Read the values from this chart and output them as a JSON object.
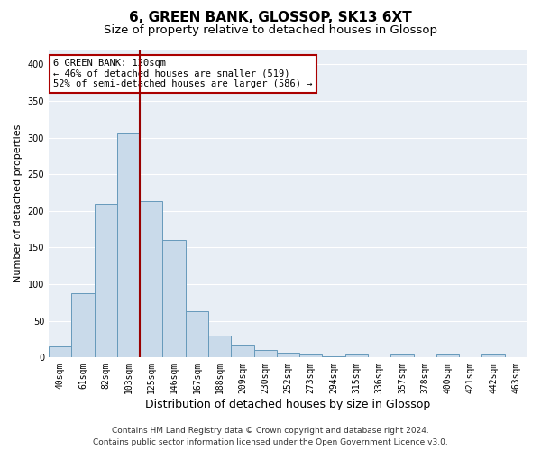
{
  "title": "6, GREEN BANK, GLOSSOP, SK13 6XT",
  "subtitle": "Size of property relative to detached houses in Glossop",
  "xlabel": "Distribution of detached houses by size in Glossop",
  "ylabel": "Number of detached properties",
  "categories": [
    "40sqm",
    "61sqm",
    "82sqm",
    "103sqm",
    "125sqm",
    "146sqm",
    "167sqm",
    "188sqm",
    "209sqm",
    "230sqm",
    "252sqm",
    "273sqm",
    "294sqm",
    "315sqm",
    "336sqm",
    "357sqm",
    "378sqm",
    "400sqm",
    "421sqm",
    "442sqm",
    "463sqm"
  ],
  "values": [
    15,
    88,
    210,
    305,
    213,
    160,
    63,
    30,
    16,
    10,
    7,
    4,
    2,
    4,
    1,
    4,
    1,
    4,
    1,
    4,
    1
  ],
  "bar_color": "#c9daea",
  "bar_edge_color": "#6699bb",
  "vline_color": "#990000",
  "annotation_text": "6 GREEN BANK: 120sqm\n← 46% of detached houses are smaller (519)\n52% of semi-detached houses are larger (586) →",
  "annotation_box_color": "white",
  "annotation_box_edge_color": "#aa0000",
  "ylim": [
    0,
    420
  ],
  "yticks": [
    0,
    50,
    100,
    150,
    200,
    250,
    300,
    350,
    400
  ],
  "background_color": "#e8eef5",
  "footer_line1": "Contains HM Land Registry data © Crown copyright and database right 2024.",
  "footer_line2": "Contains public sector information licensed under the Open Government Licence v3.0.",
  "title_fontsize": 11,
  "subtitle_fontsize": 9.5,
  "xlabel_fontsize": 9,
  "ylabel_fontsize": 8,
  "tick_fontsize": 7,
  "annotation_fontsize": 7.5,
  "footer_fontsize": 6.5
}
